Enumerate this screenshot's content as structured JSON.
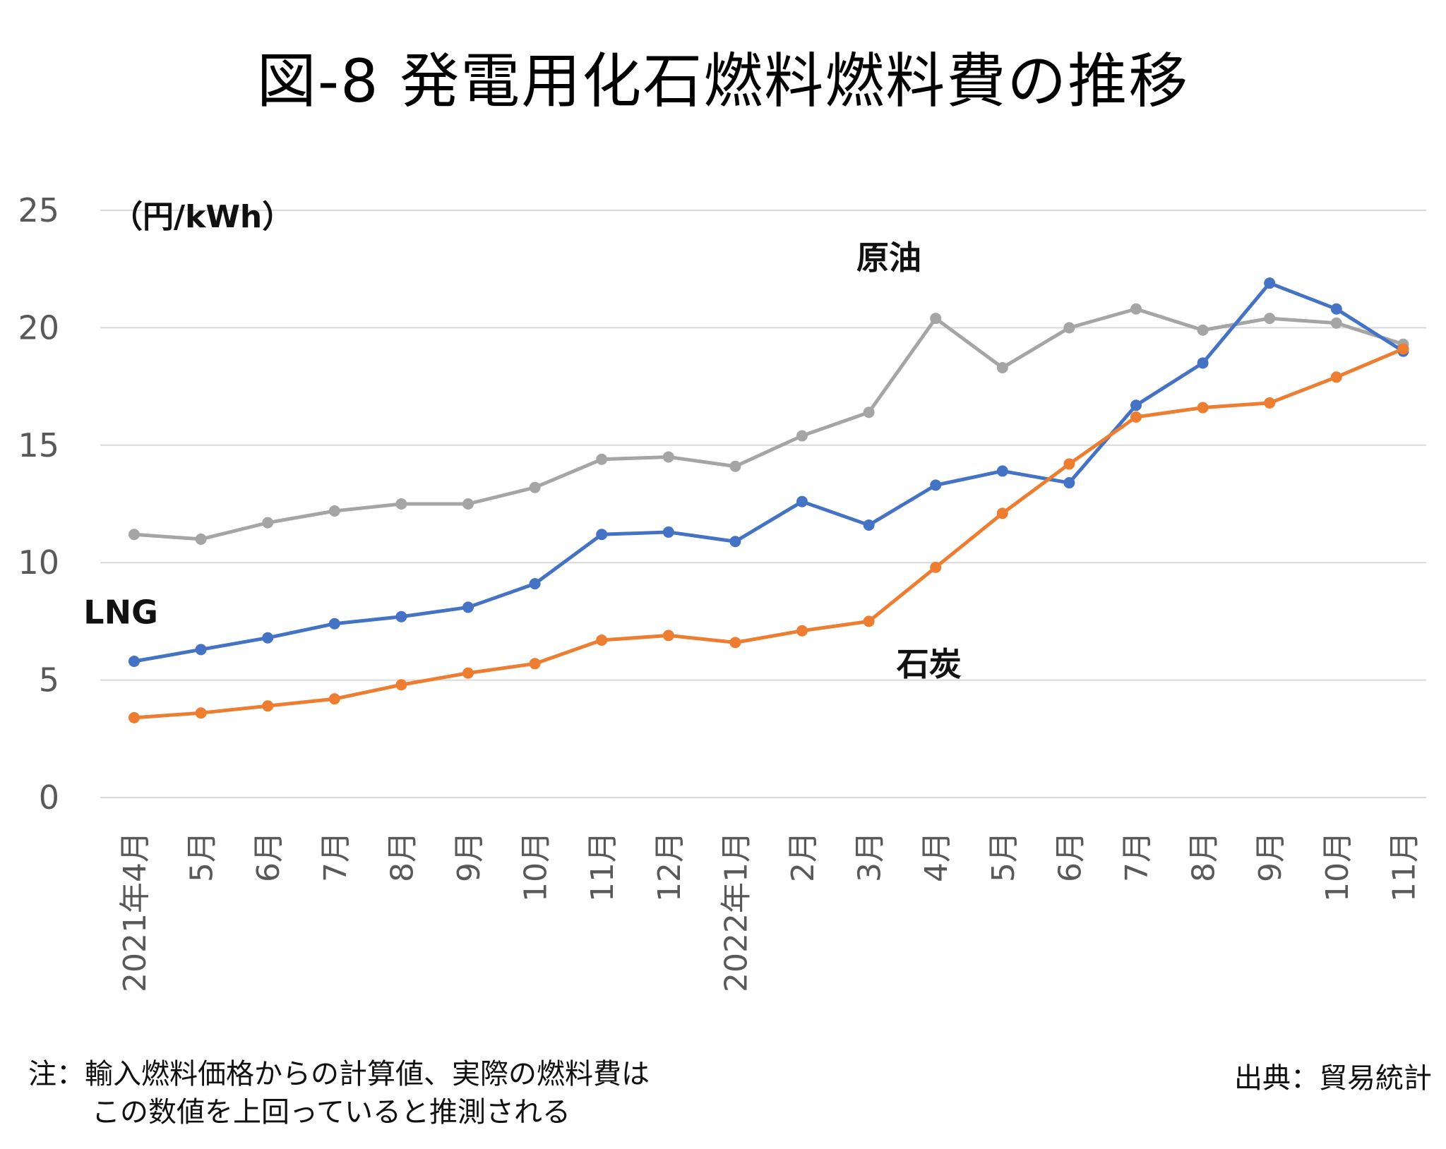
{
  "title": "図-8 発電用化石燃料燃料費の推移",
  "unit_label": "（円/kWh）",
  "note_line1": "注：輸入燃料価格からの計算値、実際の燃料費は",
  "note_line2": "この数値を上回っていると推測される",
  "source": "出典：貿易統計",
  "chart_data": {
    "type": "line",
    "title": "図-8 発電用化石燃料燃料費の推移",
    "ylabel": "（円/kWh）",
    "ylim": [
      0,
      25
    ],
    "yticks": [
      "0",
      "5",
      "10",
      "15",
      "20",
      "25"
    ],
    "grid": true,
    "categories": [
      "2021年4月",
      "5月",
      "6月",
      "7月",
      "8月",
      "9月",
      "10月",
      "11月",
      "12月",
      "2022年1月",
      "2月",
      "3月",
      "4月",
      "5月",
      "6月",
      "7月",
      "8月",
      "9月",
      "10月",
      "11月"
    ],
    "series": [
      {
        "name": "原油",
        "color": "#a5a5a5",
        "values": [
          11.2,
          11.0,
          11.7,
          12.2,
          12.5,
          12.5,
          13.2,
          14.4,
          14.5,
          14.1,
          15.4,
          16.4,
          20.4,
          18.3,
          20.0,
          20.8,
          19.9,
          20.4,
          20.2,
          19.3
        ]
      },
      {
        "name": "LNG",
        "color": "#4472c4",
        "values": [
          5.8,
          6.3,
          6.8,
          7.4,
          7.7,
          8.1,
          9.1,
          11.2,
          11.3,
          10.9,
          12.6,
          11.6,
          13.3,
          13.9,
          13.4,
          16.7,
          18.5,
          21.9,
          20.8,
          19.0
        ]
      },
      {
        "name": "石炭",
        "color": "#ed7d31",
        "values": [
          3.4,
          3.6,
          3.9,
          4.2,
          4.8,
          5.3,
          5.7,
          6.7,
          6.9,
          6.6,
          7.1,
          7.5,
          9.8,
          12.1,
          14.2,
          16.2,
          16.6,
          16.8,
          17.9,
          19.1
        ]
      }
    ]
  }
}
